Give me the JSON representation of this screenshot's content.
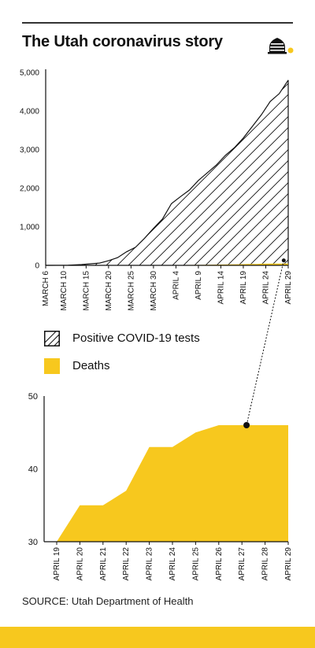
{
  "header": {
    "title": "The Utah coronavirus story",
    "logo_icon": "beehive-icon"
  },
  "colors": {
    "accent": "#F7C81E",
    "ink": "#111111"
  },
  "legend": {
    "items": [
      {
        "label": "Positive COVID-19 tests",
        "swatch": "hatched"
      },
      {
        "label": "Deaths",
        "swatch": "solid-yellow"
      }
    ]
  },
  "source": "SOURCE: Utah Department of Health",
  "chart_data": [
    {
      "type": "area",
      "ylim": [
        0,
        5000
      ],
      "y_ticks": [
        "0",
        "1,000",
        "2,000",
        "3,000",
        "4,000",
        "5,000"
      ],
      "y_tick_values": [
        0,
        1000,
        2000,
        3000,
        4000,
        5000
      ],
      "x_ticks": [
        "MARCH 6",
        "MARCH 10",
        "MARCH 15",
        "MARCH 20",
        "MARCH 25",
        "MARCH 30",
        "APRIL 4",
        "APRIL 9",
        "APRIL 14",
        "APRIL 19",
        "APRIL 24",
        "APRIL 29"
      ],
      "x_tick_days": [
        0,
        4,
        9,
        14,
        19,
        24,
        29,
        34,
        39,
        44,
        49,
        54
      ],
      "series": [
        {
          "name": "Positive COVID-19 tests",
          "style": "hatched",
          "x": [
            0,
            5,
            8,
            12,
            14,
            16,
            18,
            20,
            22,
            24,
            26,
            28,
            30,
            32,
            34,
            36,
            38,
            40,
            42,
            44,
            46,
            48,
            50,
            52,
            54
          ],
          "values": [
            0,
            5,
            20,
            60,
            120,
            200,
            350,
            470,
            700,
            960,
            1200,
            1600,
            1780,
            1950,
            2200,
            2400,
            2600,
            2850,
            3050,
            3300,
            3600,
            3900,
            4250,
            4450,
            4800
          ]
        },
        {
          "name": "Deaths",
          "style": "solid",
          "x": [
            0,
            14,
            24,
            34,
            44,
            45,
            46,
            47,
            48,
            49,
            50,
            51,
            52,
            53,
            54
          ],
          "values": [
            0,
            1,
            5,
            13,
            30,
            35,
            35,
            37,
            43,
            43,
            45,
            46,
            46,
            46,
            46
          ]
        }
      ]
    },
    {
      "type": "area",
      "ylim": [
        30,
        50
      ],
      "y_ticks": [
        "30",
        "40",
        "50"
      ],
      "y_tick_values": [
        30,
        40,
        50
      ],
      "categories": [
        "APRIL 19",
        "APRIL 20",
        "APRIL 21",
        "APRIL 22",
        "APRIL 23",
        "APRIL 24",
        "APRIL 25",
        "APRIL 26",
        "APRIL 27",
        "APRIL 28",
        "APRIL 29"
      ],
      "series": [
        {
          "name": "Deaths",
          "values": [
            30,
            35,
            35,
            37,
            43,
            43,
            45,
            46,
            46,
            46,
            46
          ]
        }
      ],
      "highlight_point": {
        "x": 8.2,
        "y": 46
      }
    }
  ]
}
